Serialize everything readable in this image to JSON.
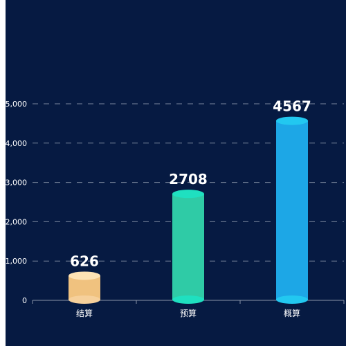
{
  "chart_data": {
    "type": "bar",
    "style": "cylinder",
    "categories": [
      "结算",
      "预算",
      "概算"
    ],
    "values": [
      626,
      2708,
      4567
    ],
    "ylim": [
      0,
      5000
    ],
    "yticks": [
      0,
      1000,
      2000,
      3000,
      4000,
      5000
    ],
    "ytick_labels": [
      "0",
      "1,000",
      "2,000",
      "3,000",
      "4,000",
      "5,000"
    ],
    "grid": true,
    "grid_style": "dashed",
    "legend": "none",
    "colors": {
      "background": "#061a42",
      "axis": "#8a94a8",
      "grid": "#7b879e",
      "text": "#ffffff",
      "bars": [
        {
          "body": "#f0c27f",
          "top": "#fde2b4",
          "bottom": "#f6d09b"
        },
        {
          "body": "#2fcba6",
          "top": "#1fe0c0",
          "bottom": "#1fe0c0"
        },
        {
          "body": "#1da7e6",
          "top": "#22c8f0",
          "bottom": "#22c8f0"
        }
      ]
    }
  }
}
